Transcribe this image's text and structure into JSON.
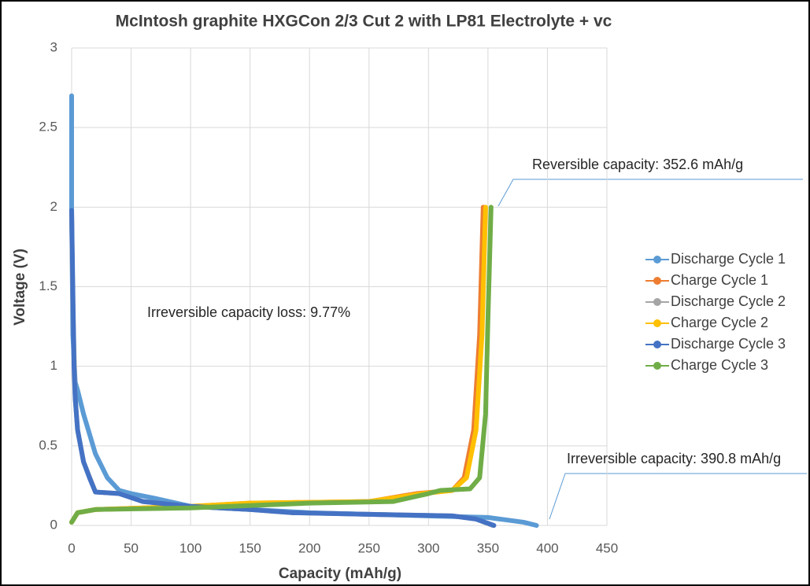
{
  "chart_data": {
    "type": "line",
    "title": "McIntosh graphite HXGCon 2/3 Cut 2 with LP81 Electrolyte + vc",
    "x_label": "Capacity (mAh/g)",
    "y_label": "Voltage (V)",
    "xlim": [
      0,
      450
    ],
    "xticks": [
      0,
      50,
      100,
      150,
      200,
      250,
      300,
      350,
      400,
      450
    ],
    "ylim": [
      0,
      3
    ],
    "yticks": [
      0,
      0.5,
      1,
      1.5,
      2,
      2.5,
      3
    ],
    "grid": true,
    "legend": "right",
    "annotations": [
      "Reversible  capacity: 352.6 mAh/g",
      "Irreversible capacity: 390.8 mAh/g",
      "Irreversible  capacity loss: 9.77%"
    ],
    "series": [
      {
        "name": "Discharge Cycle 1",
        "color": "#5b9bd5",
        "x": [
          0,
          0,
          1,
          3,
          5,
          10,
          20,
          30,
          40,
          50,
          70,
          100,
          150,
          200,
          250,
          300,
          350,
          380,
          390.8
        ],
        "values": [
          2.7,
          2.0,
          1.2,
          0.9,
          0.85,
          0.7,
          0.45,
          0.3,
          0.22,
          0.2,
          0.17,
          0.12,
          0.1,
          0.08,
          0.07,
          0.06,
          0.05,
          0.02,
          0
        ]
      },
      {
        "name": "Charge Cycle 1",
        "color": "#ed7d31",
        "x": [
          0,
          5,
          20,
          100,
          150,
          250,
          290,
          320,
          330,
          338,
          343,
          346
        ],
        "values": [
          0.02,
          0.08,
          0.1,
          0.12,
          0.14,
          0.15,
          0.2,
          0.22,
          0.3,
          0.6,
          1.2,
          2.0
        ]
      },
      {
        "name": "Discharge Cycle 2",
        "color": "#a5a5a5",
        "x": [
          0,
          1,
          3,
          5,
          10,
          20,
          40,
          60,
          100,
          150,
          185,
          250,
          320,
          340,
          354
        ],
        "values": [
          1.95,
          1.4,
          0.8,
          0.6,
          0.4,
          0.21,
          0.2,
          0.15,
          0.12,
          0.1,
          0.08,
          0.07,
          0.06,
          0.04,
          0
        ]
      },
      {
        "name": "Charge Cycle 2",
        "color": "#ffc000",
        "x": [
          0,
          5,
          20,
          100,
          150,
          250,
          295,
          320,
          332,
          340,
          345,
          348
        ],
        "values": [
          0.02,
          0.08,
          0.1,
          0.12,
          0.14,
          0.15,
          0.2,
          0.22,
          0.3,
          0.6,
          1.2,
          2.0
        ]
      },
      {
        "name": "Discharge Cycle 3",
        "color": "#4472c4",
        "x": [
          0,
          1,
          2,
          3,
          5,
          10,
          15,
          20,
          40,
          60,
          100,
          150,
          185,
          250,
          320,
          340,
          355
        ],
        "values": [
          1.98,
          1.5,
          1.0,
          0.8,
          0.6,
          0.4,
          0.3,
          0.21,
          0.2,
          0.15,
          0.12,
          0.1,
          0.08,
          0.07,
          0.06,
          0.04,
          0
        ]
      },
      {
        "name": "Charge Cycle 3",
        "color": "#70ad47",
        "x": [
          0,
          5,
          20,
          100,
          200,
          270,
          300,
          310,
          335,
          343,
          348,
          350,
          352.6
        ],
        "values": [
          0.02,
          0.08,
          0.1,
          0.11,
          0.14,
          0.15,
          0.2,
          0.22,
          0.23,
          0.3,
          0.7,
          1.3,
          2.0
        ]
      }
    ]
  }
}
